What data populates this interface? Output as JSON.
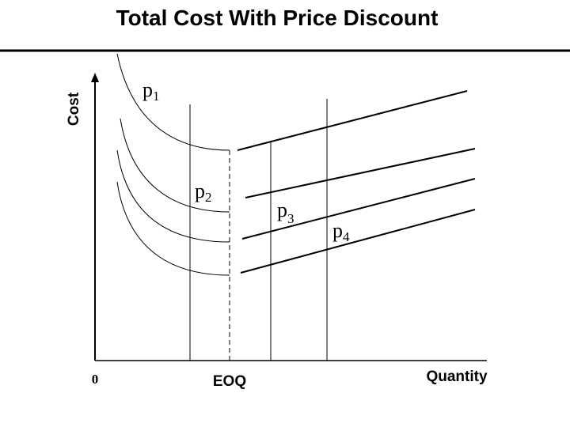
{
  "header": {
    "title": "Total Cost With Price Discount"
  },
  "axes": {
    "y_label": "Cost",
    "origin": "0",
    "x_label": "Quantity",
    "eoq": "EOQ"
  },
  "curves": [
    {
      "letter": "p",
      "sub": "1"
    },
    {
      "letter": "p",
      "sub": "2"
    },
    {
      "letter": "p",
      "sub": "3"
    },
    {
      "letter": "p",
      "sub": "4"
    }
  ]
}
